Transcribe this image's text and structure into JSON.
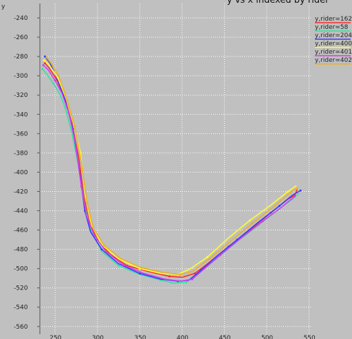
{
  "chart_data": {
    "type": "scatter",
    "title": "y vs x indexed by rider",
    "ylabel": "y",
    "xlabel": "",
    "xlim": [
      232,
      552
    ],
    "ylim": [
      -568,
      -225
    ],
    "x_ticks": [
      250,
      300,
      350,
      400,
      450,
      500,
      550
    ],
    "y_ticks": [
      -240,
      -260,
      -280,
      -300,
      -320,
      -340,
      -360,
      -380,
      -400,
      -420,
      -440,
      -460,
      -480,
      -500,
      -520,
      -540,
      -560
    ],
    "grid": true,
    "legend_position": "top-right",
    "series": [
      {
        "name": "y,rider=162",
        "color": "#ff2a2a",
        "points": [
          [
            238,
            -287
          ],
          [
            243,
            -292
          ],
          [
            252,
            -304
          ],
          [
            262,
            -325
          ],
          [
            270,
            -350
          ],
          [
            278,
            -385
          ],
          [
            284,
            -425
          ],
          [
            290,
            -450
          ],
          [
            300,
            -470
          ],
          [
            315,
            -485
          ],
          [
            335,
            -497
          ],
          [
            360,
            -503
          ],
          [
            385,
            -508
          ],
          [
            400,
            -509
          ],
          [
            415,
            -505
          ],
          [
            430,
            -495
          ],
          [
            455,
            -477
          ],
          [
            480,
            -460
          ],
          [
            505,
            -442
          ],
          [
            525,
            -428
          ],
          [
            533,
            -424
          ],
          [
            536,
            -418
          ]
        ]
      },
      {
        "name": "y,rider=58",
        "color": "#33e0a0",
        "points": [
          [
            235,
            -293
          ],
          [
            240,
            -298
          ],
          [
            248,
            -308
          ],
          [
            255,
            -318
          ],
          [
            262,
            -333
          ],
          [
            270,
            -360
          ],
          [
            278,
            -395
          ],
          [
            285,
            -435
          ],
          [
            292,
            -460
          ],
          [
            305,
            -482
          ],
          [
            325,
            -497
          ],
          [
            350,
            -506
          ],
          [
            375,
            -512
          ],
          [
            390,
            -515
          ],
          [
            405,
            -514
          ],
          [
            420,
            -505
          ],
          [
            440,
            -490
          ],
          [
            465,
            -472
          ],
          [
            490,
            -455
          ],
          [
            515,
            -438
          ],
          [
            530,
            -428
          ],
          [
            538,
            -422
          ]
        ]
      },
      {
        "name": "y,rider=204",
        "color": "#3a3aff",
        "points": [
          [
            238,
            -280
          ],
          [
            244,
            -287
          ],
          [
            252,
            -302
          ],
          [
            262,
            -325
          ],
          [
            271,
            -355
          ],
          [
            279,
            -400
          ],
          [
            285,
            -440
          ],
          [
            292,
            -462
          ],
          [
            305,
            -480
          ],
          [
            325,
            -495
          ],
          [
            350,
            -505
          ],
          [
            375,
            -511
          ],
          [
            395,
            -513
          ],
          [
            408,
            -512
          ],
          [
            422,
            -502
          ],
          [
            440,
            -488
          ],
          [
            465,
            -470
          ],
          [
            490,
            -452
          ],
          [
            515,
            -435
          ],
          [
            530,
            -424
          ],
          [
            540,
            -419
          ]
        ]
      },
      {
        "name": "y,rider=400",
        "color": "#ffff30",
        "points": [
          [
            237,
            -284
          ],
          [
            244,
            -290
          ],
          [
            253,
            -302
          ],
          [
            263,
            -323
          ],
          [
            272,
            -350
          ],
          [
            280,
            -380
          ],
          [
            286,
            -425
          ],
          [
            293,
            -455
          ],
          [
            305,
            -475
          ],
          [
            325,
            -490
          ],
          [
            350,
            -500
          ],
          [
            375,
            -505
          ],
          [
            395,
            -506
          ],
          [
            410,
            -500
          ],
          [
            430,
            -488
          ],
          [
            455,
            -468
          ],
          [
            480,
            -450
          ],
          [
            505,
            -434
          ],
          [
            525,
            -420
          ],
          [
            535,
            -414
          ]
        ]
      },
      {
        "name": "y,rider=401",
        "color": "#d23cf0",
        "points": [
          [
            236,
            -289
          ],
          [
            242,
            -294
          ],
          [
            250,
            -305
          ],
          [
            258,
            -318
          ],
          [
            266,
            -338
          ],
          [
            274,
            -370
          ],
          [
            281,
            -415
          ],
          [
            287,
            -445
          ],
          [
            296,
            -465
          ],
          [
            310,
            -482
          ],
          [
            330,
            -496
          ],
          [
            355,
            -505
          ],
          [
            380,
            -511
          ],
          [
            398,
            -513
          ],
          [
            412,
            -511
          ],
          [
            425,
            -501
          ],
          [
            445,
            -486
          ],
          [
            470,
            -468
          ],
          [
            495,
            -451
          ],
          [
            518,
            -436
          ],
          [
            533,
            -425
          ]
        ]
      },
      {
        "name": "y,rider=402",
        "color": "#e8b020",
        "points": [
          [
            240,
            -281
          ],
          [
            246,
            -288
          ],
          [
            254,
            -300
          ],
          [
            263,
            -322
          ],
          [
            273,
            -352
          ],
          [
            281,
            -390
          ],
          [
            288,
            -432
          ],
          [
            295,
            -458
          ],
          [
            308,
            -476
          ],
          [
            328,
            -490
          ],
          [
            352,
            -499
          ],
          [
            378,
            -504
          ],
          [
            398,
            -506
          ],
          [
            412,
            -503
          ],
          [
            432,
            -490
          ],
          [
            458,
            -471
          ],
          [
            483,
            -453
          ],
          [
            508,
            -436
          ],
          [
            528,
            -421
          ],
          [
            537,
            -416
          ]
        ]
      }
    ]
  }
}
